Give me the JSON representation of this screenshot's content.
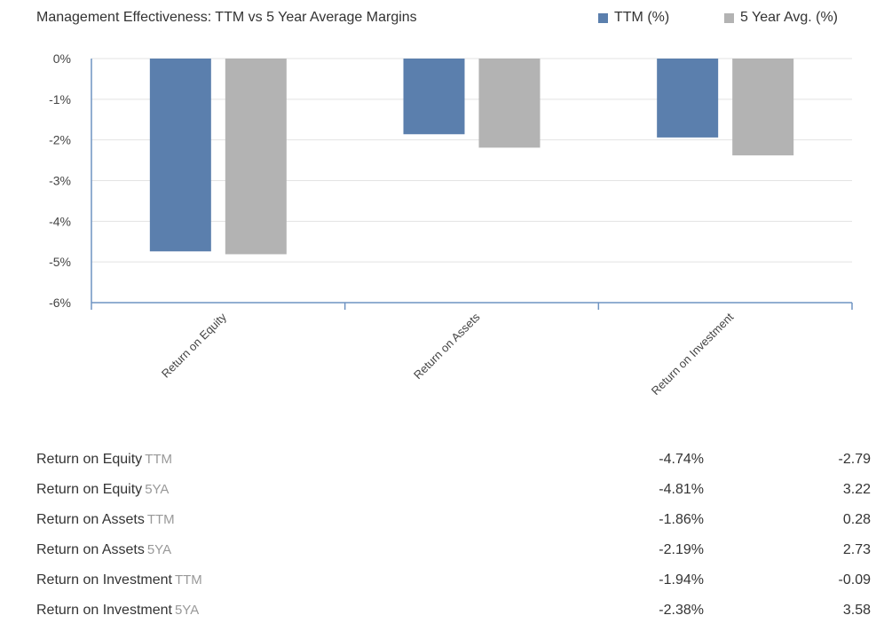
{
  "colors": {
    "ttm": "#5b7fad",
    "five_year": "#b3b3b3",
    "grid": "#e3e3e3",
    "axis": "#6f94c2"
  },
  "chart_data": {
    "type": "bar",
    "title": "Management Effectiveness: TTM vs 5 Year Average Margins",
    "categories": [
      "Return on Equity",
      "Return on Assets",
      "Return on Investment"
    ],
    "series": [
      {
        "name": "TTM (%)",
        "values": [
          -4.74,
          -1.86,
          -1.94
        ]
      },
      {
        "name": "5 Year Avg. (%)",
        "values": [
          -4.81,
          -2.19,
          -2.38
        ]
      }
    ],
    "ylim": [
      -6,
      0
    ],
    "yticks": [
      0,
      -1,
      -2,
      -3,
      -4,
      -5,
      -6
    ],
    "ytick_labels": [
      "0%",
      "-1%",
      "-2%",
      "-3%",
      "-4%",
      "-5%",
      "-6%"
    ],
    "xlabel": "",
    "ylabel": "",
    "grid": true,
    "legend": "top-right"
  },
  "table": {
    "rows": [
      {
        "label": "Return on Equity",
        "tag": "TTM",
        "pct": "-4.74%",
        "value": "-2.79"
      },
      {
        "label": "Return on Equity",
        "tag": "5YA",
        "pct": "-4.81%",
        "value": "3.22"
      },
      {
        "label": "Return on Assets",
        "tag": "TTM",
        "pct": "-1.86%",
        "value": "0.28"
      },
      {
        "label": "Return on Assets",
        "tag": "5YA",
        "pct": "-2.19%",
        "value": "2.73"
      },
      {
        "label": "Return on Investment",
        "tag": "TTM",
        "pct": "-1.94%",
        "value": "-0.09"
      },
      {
        "label": "Return on Investment",
        "tag": "5YA",
        "pct": "-2.38%",
        "value": "3.58"
      }
    ]
  }
}
